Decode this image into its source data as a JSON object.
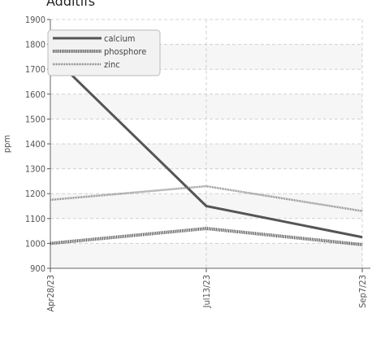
{
  "chart_data": {
    "type": "line",
    "title": "Additifs",
    "xlabel": "",
    "ylabel": "ppm",
    "ylim": [
      900,
      1900
    ],
    "yticks": [
      900,
      1000,
      1100,
      1200,
      1300,
      1400,
      1500,
      1600,
      1700,
      1800,
      1900
    ],
    "categories": [
      "Apr28/23",
      "Jul13/23",
      "Sep7/23"
    ],
    "series": [
      {
        "name": "calcium",
        "values": [
          1760,
          1150,
          1025
        ],
        "color": "#555555",
        "style": "solid"
      },
      {
        "name": "phosphore",
        "values": [
          1000,
          1060,
          995
        ],
        "color": "#555555",
        "style": "dotted-heavy"
      },
      {
        "name": "zinc",
        "values": [
          1175,
          1230,
          1130
        ],
        "color": "#777777",
        "style": "dotted-light"
      }
    ],
    "grid": true,
    "legend_position": "top-left"
  }
}
